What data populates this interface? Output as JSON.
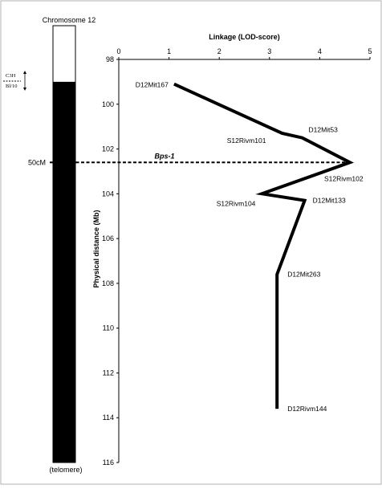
{
  "chart_data": {
    "type": "line",
    "xlabel": "Linkage (LOD-score)",
    "ylabel": "Physical distance (Mb)",
    "xlim": [
      0,
      5
    ],
    "ylim": [
      98,
      116
    ],
    "y_inverted": true,
    "x_ticks": [
      "0",
      "1",
      "2",
      "3",
      "4",
      "5"
    ],
    "y_ticks": [
      "98",
      "100",
      "102",
      "104",
      "106",
      "108",
      "110",
      "112",
      "114",
      "116"
    ],
    "series": [
      {
        "points": [
          {
            "lod": 1.1,
            "mb": 99.1,
            "label": "D12Mit167"
          },
          {
            "lod": 3.25,
            "mb": 101.3,
            "label": "S12Rivm101"
          },
          {
            "lod": 3.65,
            "mb": 101.5,
            "label": "D12Mit53"
          },
          {
            "lod": 4.6,
            "mb": 102.6,
            "label": "S12Rivm102"
          },
          {
            "lod": 2.85,
            "mb": 104.0,
            "label": "S12Rivm104"
          },
          {
            "lod": 3.7,
            "mb": 104.3,
            "label": "D12Mit133"
          },
          {
            "lod": 3.15,
            "mb": 107.6,
            "label": "D12Mit263"
          },
          {
            "lod": 3.15,
            "mb": 113.6,
            "label": "D12Rivm144"
          }
        ]
      }
    ],
    "annotations": {
      "locus_label": "Bps-1",
      "locus_mb": 102.6,
      "cm_label": "50cM"
    },
    "grid": false
  },
  "chromosome": {
    "title": "Chromosome 12",
    "bottom_label": "(telomere)",
    "strain_top": "C3H",
    "strain_bottom": "Bl/10",
    "filled_from_mb": 99.0
  },
  "colors": {
    "line": "#000000",
    "axis": "#000000",
    "chromosome_fill": "#000000",
    "frame": "#b0b0b0"
  }
}
